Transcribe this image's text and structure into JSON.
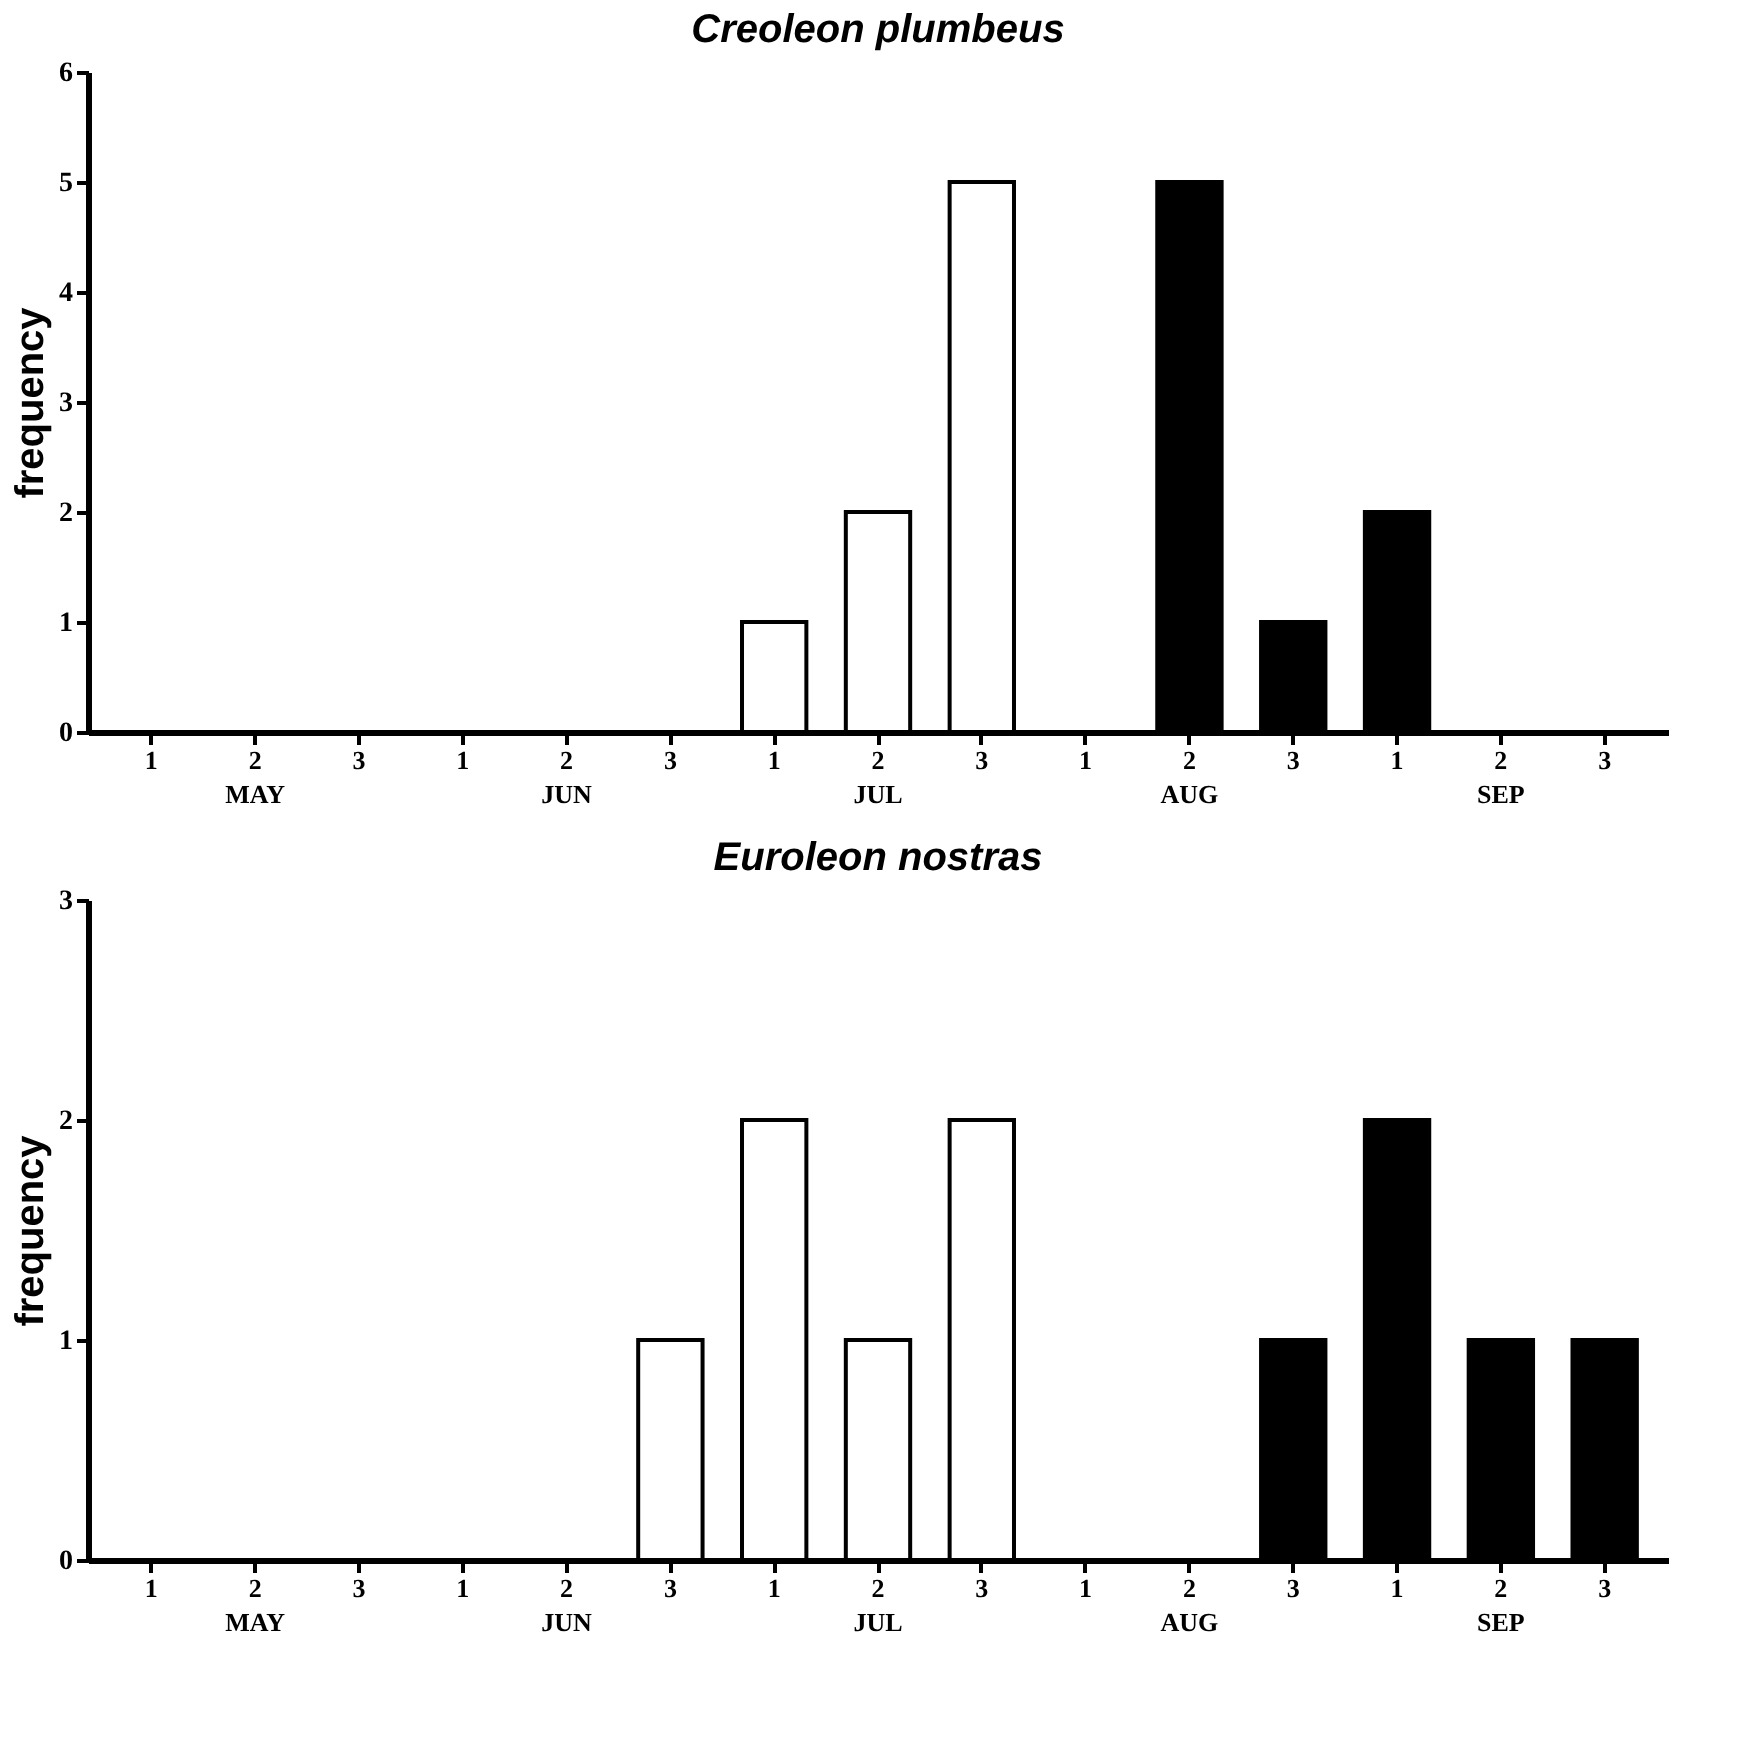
{
  "chart_data": [
    {
      "type": "bar",
      "title": "Creoleon plumbeus",
      "ylabel": "frequency",
      "categories": [
        "1",
        "2\nMAY",
        "3",
        "1",
        "2\nJUN",
        "3",
        "1",
        "2\nJUL",
        "3",
        "1",
        "2\nAUG",
        "3",
        "1",
        "2\nSEP",
        "3"
      ],
      "ylim": [
        0,
        6
      ],
      "yticks": [
        0,
        1,
        2,
        3,
        4,
        5,
        6
      ],
      "grid": false,
      "series": [
        {
          "color": "#ffffff",
          "values": [
            null,
            null,
            null,
            null,
            null,
            null,
            1,
            2,
            5,
            null,
            null,
            null,
            null,
            null,
            null
          ]
        },
        {
          "color": "#000000",
          "values": [
            null,
            null,
            null,
            null,
            null,
            null,
            null,
            null,
            null,
            null,
            5,
            1,
            2,
            null,
            null
          ]
        }
      ]
    },
    {
      "type": "bar",
      "title": "Euroleon nostras",
      "ylabel": "frequency",
      "categories": [
        "1",
        "2\nMAY",
        "3",
        "1",
        "2\nJUN",
        "3",
        "1",
        "2\nJUL",
        "3",
        "1",
        "2\nAUG",
        "3",
        "1",
        "2\nSEP",
        "3"
      ],
      "ylim": [
        0,
        3
      ],
      "yticks": [
        0,
        1,
        2,
        3
      ],
      "grid": false,
      "series": [
        {
          "color": "#ffffff",
          "values": [
            null,
            null,
            null,
            null,
            null,
            1,
            2,
            1,
            2,
            null,
            null,
            null,
            null,
            null,
            null
          ]
        },
        {
          "color": "#000000",
          "values": [
            null,
            null,
            null,
            null,
            null,
            null,
            null,
            null,
            null,
            null,
            null,
            1,
            2,
            1,
            1
          ]
        }
      ]
    }
  ]
}
